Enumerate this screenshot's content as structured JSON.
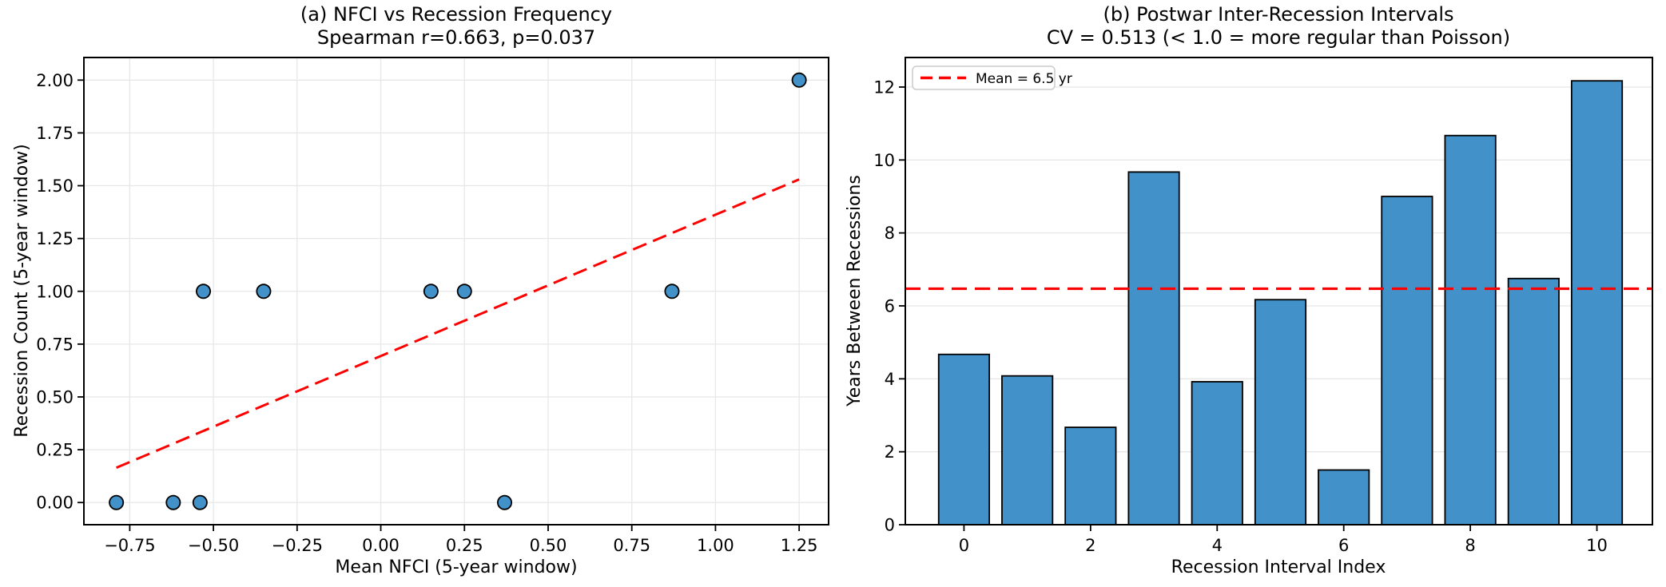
{
  "figure": {
    "background": "#ffffff"
  },
  "colors": {
    "series_fill": "#4291c8",
    "series_edge": "#000000",
    "red_line": "#ff0000",
    "grid": "#e7e7e7",
    "spine": "#000000",
    "text": "#000000",
    "legend_border": "#cccccc",
    "background": "#ffffff"
  },
  "chart_data": [
    {
      "type": "scatter",
      "title": "(a) NFCI vs Recession Frequency",
      "subtitle": "Spearman r=0.663, p=0.037",
      "xlabel": "Mean NFCI (5-year window)",
      "ylabel": "Recession Count (5-year window)",
      "xlim": [
        -0.887,
        1.338
      ],
      "ylim": [
        -0.105,
        2.107
      ],
      "xticks": [
        -0.75,
        -0.5,
        -0.25,
        0,
        0.25,
        0.5,
        0.75,
        1,
        1.25
      ],
      "xtick_labels": [
        "−0.75",
        "−0.50",
        "−0.25",
        "0.00",
        "0.25",
        "0.50",
        "0.75",
        "1.00",
        "1.25"
      ],
      "yticks": [
        0,
        0.25,
        0.5,
        0.75,
        1,
        1.25,
        1.5,
        1.75,
        2
      ],
      "ytick_labels": [
        "0.00",
        "0.25",
        "0.50",
        "0.75",
        "1.00",
        "1.25",
        "1.50",
        "1.75",
        "2.00"
      ],
      "grid": "both",
      "legend": null,
      "points": [
        [
          -0.79,
          0
        ],
        [
          -0.62,
          0
        ],
        [
          -0.54,
          0
        ],
        [
          0.37,
          0
        ],
        [
          -0.53,
          1
        ],
        [
          -0.35,
          1
        ],
        [
          0.15,
          1
        ],
        [
          0.25,
          1
        ],
        [
          0.87,
          1
        ],
        [
          1.25,
          2
        ]
      ],
      "trend_line": {
        "x1": -0.79,
        "y1": 0.165,
        "x2": 1.25,
        "y2": 1.53,
        "style": "dashed"
      }
    },
    {
      "type": "bar",
      "title": "(b) Postwar Inter-Recession Intervals",
      "subtitle": "CV = 0.513 (< 1.0 = more regular than Poisson)",
      "xlabel": "Recession Interval Index",
      "ylabel": "Years Between Recessions",
      "xlim": [
        -0.927,
        10.877
      ],
      "ylim": [
        0,
        12.81
      ],
      "xticks": [
        0,
        2,
        4,
        6,
        8,
        10
      ],
      "xtick_labels": [
        "0",
        "2",
        "4",
        "6",
        "8",
        "10"
      ],
      "yticks": [
        0,
        2,
        4,
        6,
        8,
        10,
        12
      ],
      "ytick_labels": [
        "0",
        "2",
        "4",
        "6",
        "8",
        "10",
        "12"
      ],
      "grid": "y",
      "categories": [
        0,
        1,
        2,
        3,
        4,
        5,
        6,
        7,
        8,
        9,
        10
      ],
      "values": [
        4.67,
        4.08,
        2.67,
        9.67,
        3.92,
        6.17,
        1.5,
        9.0,
        10.67,
        6.75,
        12.17
      ],
      "bar_width": 0.8,
      "mean_line": {
        "value": 6.47,
        "label": "Mean = 6.5 yr",
        "style": "dashed"
      },
      "legend": {
        "position": "upper-left",
        "entries": [
          {
            "label": "Mean = 6.5 yr",
            "line": "red-dashed"
          }
        ]
      }
    }
  ]
}
